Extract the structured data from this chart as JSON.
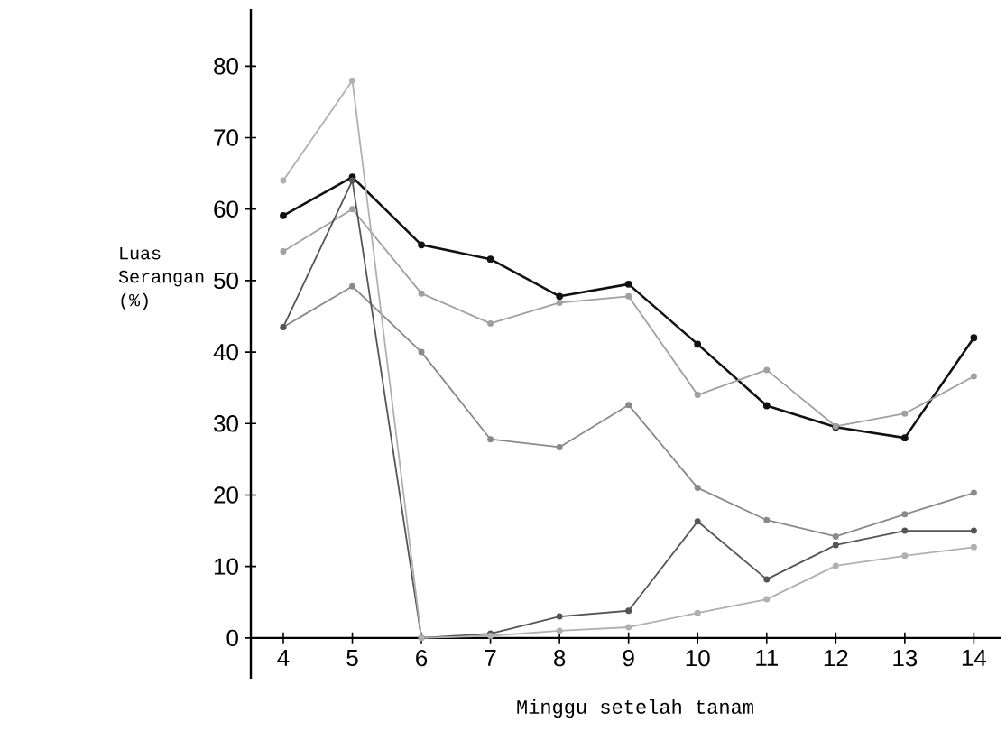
{
  "chart_data": {
    "type": "line",
    "xlabel": "Minggu setelah tanam",
    "ylabel": "Luas Serangan (%)",
    "x": [
      4,
      5,
      6,
      7,
      8,
      9,
      10,
      11,
      12,
      13,
      14
    ],
    "xlim": [
      3.53,
      14.4
    ],
    "ylim": [
      -5.7,
      88
    ],
    "xticks": [
      4,
      5,
      6,
      7,
      8,
      9,
      10,
      11,
      12,
      13,
      14
    ],
    "yticks": [
      0,
      10,
      20,
      30,
      40,
      50,
      60,
      70,
      80
    ],
    "marker": "circle",
    "line_style": "solid",
    "series": [
      {
        "color": "#111111",
        "values": [
          59.1,
          64.5,
          55,
          53,
          47.8,
          49.5,
          41.1,
          32.5,
          29.5,
          28,
          42
        ]
      },
      {
        "color": "#a0a0a0",
        "values": [
          54.1,
          60,
          48.2,
          44,
          46.9,
          47.8,
          34,
          37.5,
          29.6,
          31.4,
          36.6
        ]
      },
      {
        "color": "#8a8a8a",
        "values": [
          43.5,
          49.2,
          40,
          27.8,
          26.7,
          32.6,
          21,
          16.5,
          14.2,
          17.3,
          20.3
        ]
      },
      {
        "color": "#555555",
        "values": [
          43.5,
          64,
          0,
          0.6,
          3,
          3.8,
          16.3,
          8.2,
          13,
          15,
          15
        ]
      },
      {
        "color": "#b0b0b0",
        "values": [
          64,
          78,
          0,
          0.3,
          1,
          1.5,
          3.5,
          5.4,
          10.1,
          11.5,
          12.7
        ]
      }
    ]
  }
}
